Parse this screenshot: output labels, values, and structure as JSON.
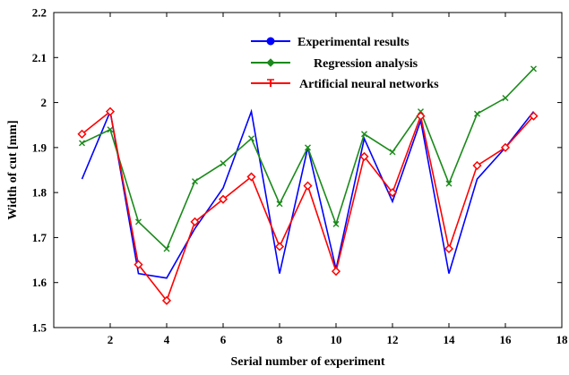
{
  "chart_data": {
    "type": "line",
    "title": "",
    "xlabel": "Serial number of experiment",
    "ylabel": "Width of cut [mm]",
    "xlim": [
      0,
      18
    ],
    "ylim": [
      1.5,
      2.2
    ],
    "xticks": [
      2,
      4,
      6,
      8,
      10,
      12,
      14,
      16,
      18
    ],
    "yticks": [
      1.5,
      1.6,
      1.7,
      1.8,
      1.9,
      2,
      2.1,
      2.2
    ],
    "grid": false,
    "legend_position": "top-center",
    "x": [
      1,
      2,
      3,
      4,
      5,
      6,
      7,
      8,
      9,
      10,
      11,
      12,
      13,
      14,
      15,
      16,
      17
    ],
    "series": [
      {
        "name": "Experimental results",
        "color": "#0000ff",
        "marker": "none",
        "values": [
          1.83,
          1.98,
          1.62,
          1.61,
          1.72,
          1.81,
          1.98,
          1.62,
          1.9,
          1.63,
          1.92,
          1.78,
          1.96,
          1.62,
          1.83,
          1.9,
          1.98
        ]
      },
      {
        "name": "Regression analysis",
        "color": "#1a8a1a",
        "marker": "x",
        "values": [
          1.91,
          1.94,
          1.735,
          1.675,
          1.825,
          1.865,
          1.92,
          1.775,
          1.9,
          1.73,
          1.93,
          1.89,
          1.98,
          1.82,
          1.975,
          2.01,
          2.075
        ]
      },
      {
        "name": "Artificial neural networks",
        "color": "#ff0000",
        "marker": "diamond",
        "values": [
          1.93,
          1.98,
          1.64,
          1.56,
          1.735,
          1.785,
          1.835,
          1.68,
          1.815,
          1.625,
          1.88,
          1.8,
          1.97,
          1.675,
          1.86,
          1.9,
          1.97
        ]
      }
    ]
  }
}
